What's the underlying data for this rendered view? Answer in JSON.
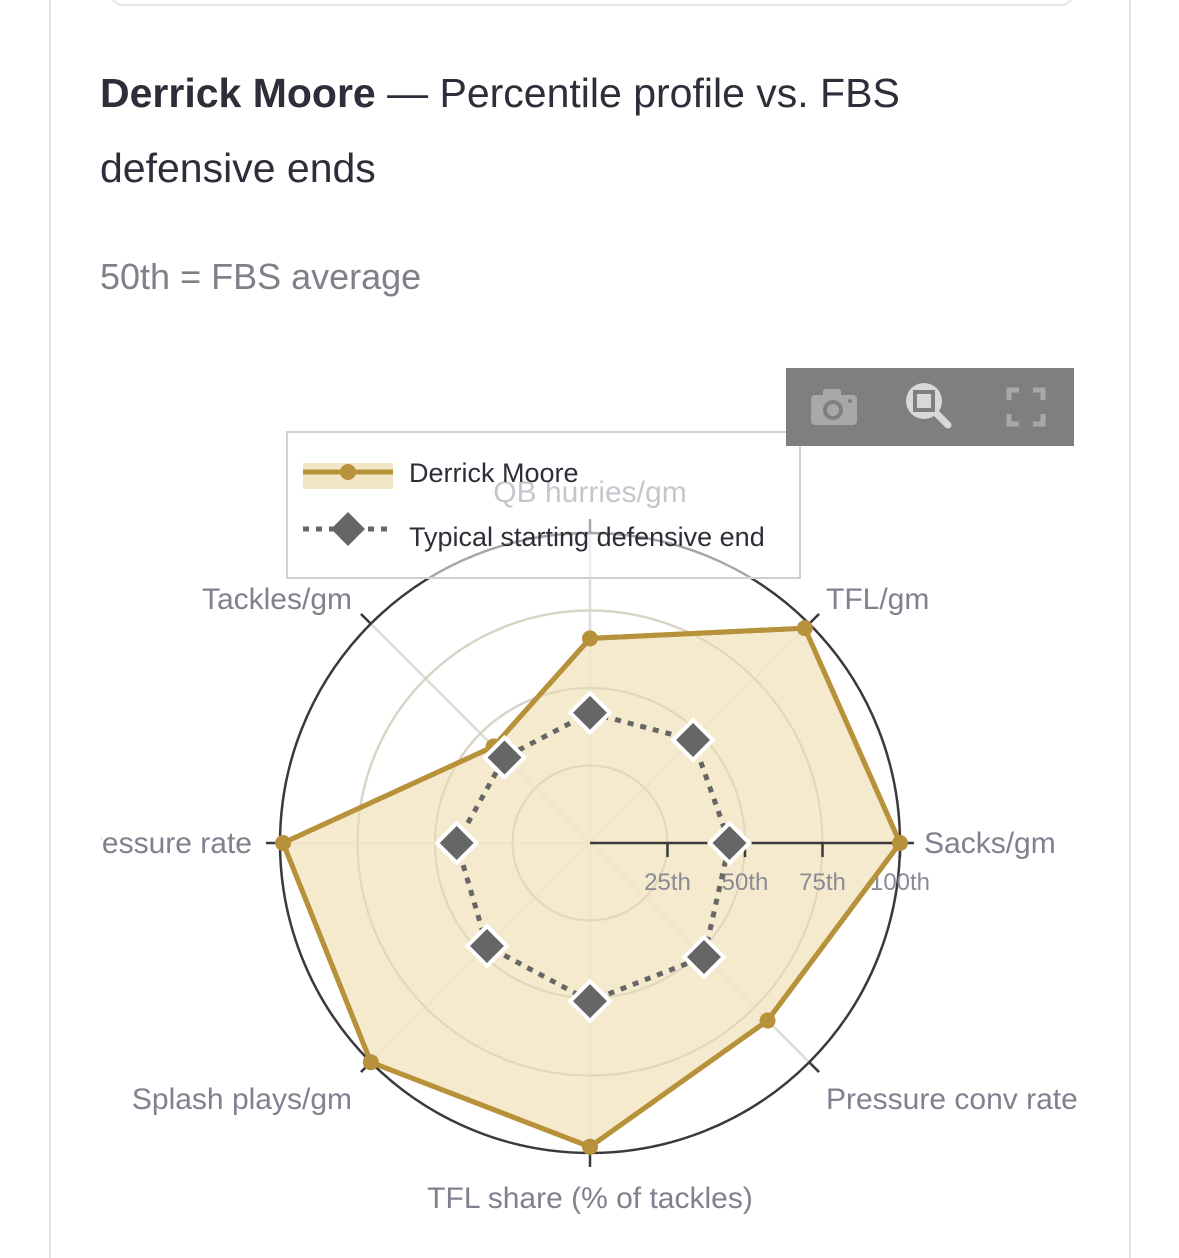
{
  "title": {
    "name": "Derrick Moore",
    "rest": " — Percentile profile vs. FBS defensive ends"
  },
  "subtitle": "50th = FBS average",
  "modebar": {
    "icons": [
      "camera-icon",
      "zoom-icon",
      "fullscreen-icon"
    ]
  },
  "chart_data": {
    "type": "radar",
    "axes": [
      "QB hurries/gm",
      "TFL/gm",
      "Sacks/gm",
      "Pressure conv rate",
      "TFL share (% of tackles)",
      "Splash plays/gm",
      "Pressure rate",
      "Tackles/gm"
    ],
    "radial_range": [
      0,
      100
    ],
    "radial_ticks": [
      25,
      50,
      75,
      100
    ],
    "radial_tick_labels": [
      "25th",
      "50th",
      "75th",
      "100th"
    ],
    "grid": true,
    "legend_placement": "top-left",
    "series": [
      {
        "name": "Derrick Moore",
        "values": [
          66,
          98,
          100,
          81,
          98,
          100,
          99,
          44
        ],
        "color": "#b8923a",
        "fill": "#f3e6c6",
        "style": "solid-circle"
      },
      {
        "name": "Typical starting defensive end",
        "values": [
          42,
          47,
          45,
          52,
          51,
          47,
          43,
          39
        ],
        "color": "#666666",
        "style": "dotted-diamond"
      }
    ]
  }
}
